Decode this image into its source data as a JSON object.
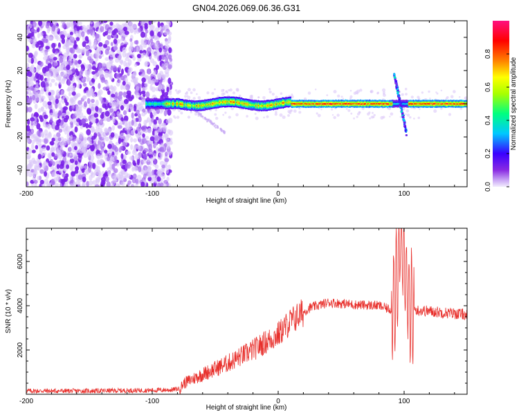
{
  "title": "GN04.2026.069.06.36.G31",
  "colors": {
    "snr_line": "#e8302c",
    "scatter_purple": "#7a20e8",
    "frame": "#000000"
  },
  "chart_data": [
    {
      "type": "heatmap",
      "xlabel": "Height of straight line (km)",
      "ylabel": "Frequency (Hz)",
      "xlim": [
        -200,
        150
      ],
      "ylim": [
        -50,
        50
      ],
      "x_ticks": [
        -200,
        -100,
        0,
        100
      ],
      "y_ticks": [
        -40,
        -20,
        0,
        20,
        40
      ],
      "colorbar": {
        "label": "Normalized spectral amplitude",
        "range": [
          0,
          1
        ],
        "ticks": [
          0,
          0.2,
          0.4,
          0.6,
          0.8
        ],
        "tick_labels": [
          "0.0",
          "0.2",
          "0.4",
          "0.6",
          "0.8"
        ],
        "palette": [
          "#e8dcfb",
          "#8a2be2",
          "#3a00ff",
          "#00c8ff",
          "#00ff80",
          "#a8ff00",
          "#ffff00",
          "#ff8000",
          "#ff0000",
          "#ff1080"
        ]
      },
      "ridge": {
        "x_start": -105,
        "x_end": 150,
        "frequency": 0,
        "peak_amplitude": 0.9
      },
      "noise_region": [
        -200,
        -85
      ],
      "disturbance": {
        "x_center": 97,
        "freq_range": [
          -20,
          22
        ]
      }
    },
    {
      "type": "line",
      "xlabel": "Height of straight line (km)",
      "ylabel": "SNR (10 * v/v)",
      "xlim": [
        -200,
        150
      ],
      "ylim": [
        0,
        7500
      ],
      "x_ticks": [
        -200,
        -100,
        0,
        100
      ],
      "y_ticks": [
        2000,
        4000,
        6000
      ],
      "series": [
        {
          "x": [
            -200,
            -150,
            -100,
            -85,
            -78,
            -75,
            -60,
            -40,
            -20,
            0,
            10,
            25,
            40,
            60,
            80,
            90,
            95,
            97,
            100,
            103,
            106,
            110,
            130,
            150
          ],
          "y": [
            150,
            150,
            180,
            200,
            250,
            500,
            900,
            1400,
            2000,
            2700,
            3300,
            3900,
            4150,
            4050,
            4000,
            3800,
            5500,
            7000,
            6000,
            4500,
            3900,
            3800,
            3700,
            3600
          ]
        }
      ]
    }
  ]
}
